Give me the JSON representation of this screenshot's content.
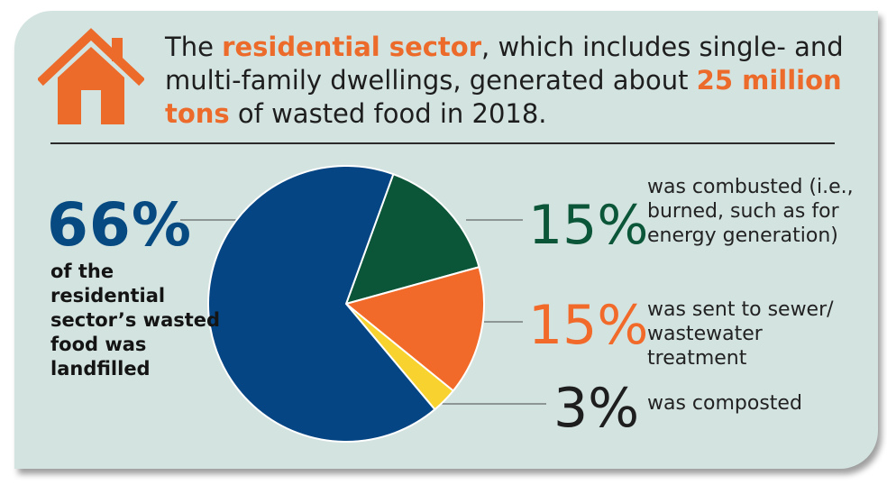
{
  "header": {
    "intro_1": "The ",
    "highlight_1": "residential sector",
    "intro_2": ", which includes single- and multi-family dwellings, generated about ",
    "highlight_2": "25 million tons",
    "intro_3": " of wasted food in 2018."
  },
  "icon": "house-icon",
  "colors": {
    "accent": "#ec6a2a",
    "background": "#d3e3e0",
    "landfilled": "#054583",
    "combusted": "#0b5638",
    "sewer": "#f26a2a",
    "composted": "#f8d32f"
  },
  "chart_data": {
    "type": "pie",
    "slices": [
      {
        "label": "of the residential sector’s wasted food was landfilled",
        "value": 66,
        "percent_label": "66%",
        "color": "#054583"
      },
      {
        "label": "was combusted (i.e., burned, such as for energy generation)",
        "value": 15,
        "percent_label": "15%",
        "color": "#0b5638"
      },
      {
        "label": "was sent to sewer/ wastewater treatment",
        "value": 15,
        "percent_label": "15%",
        "color": "#f26a2a"
      },
      {
        "label": "was composted",
        "value": 3,
        "percent_label": "3%",
        "color": "#f8d32f"
      }
    ],
    "title": "",
    "legend": "none"
  }
}
